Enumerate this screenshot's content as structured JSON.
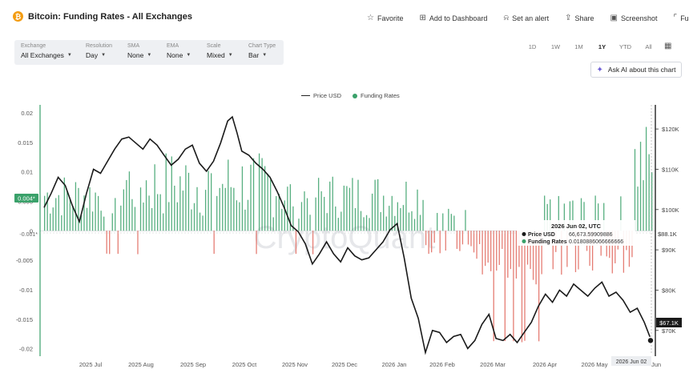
{
  "header": {
    "coin_symbol": "₿",
    "title": "Bitcoin: Funding Rates - All Exchanges",
    "actions": [
      {
        "label": "Favorite",
        "icon": "star-icon"
      },
      {
        "label": "Add to Dashboard",
        "icon": "dashboard-icon"
      },
      {
        "label": "Set an alert",
        "icon": "bell-icon"
      },
      {
        "label": "Share",
        "icon": "share-icon"
      },
      {
        "label": "Screenshot",
        "icon": "camera-icon"
      },
      {
        "label": "Full",
        "icon": "fullscreen-icon"
      }
    ]
  },
  "controls": [
    {
      "label": "Exchange",
      "value": "All Exchanges"
    },
    {
      "label": "Resolution",
      "value": "Day"
    },
    {
      "label": "SMA",
      "value": "None"
    },
    {
      "label": "EMA",
      "value": "None"
    },
    {
      "label": "Scale",
      "value": "Mixed"
    },
    {
      "label": "Chart Type",
      "value": "Bar"
    }
  ],
  "ranges": [
    "1D",
    "1W",
    "1M",
    "1Y",
    "YTD",
    "All"
  ],
  "active_range": "1Y",
  "ai_button": "Ask AI about this chart",
  "watermark": "CryptoQuant",
  "colors": {
    "positive": "#3aa16a",
    "negative": "#e0665c",
    "price": "#1a1a1a",
    "accent": "#6b5cd6"
  },
  "chart_data": {
    "type": "bar",
    "series": [
      {
        "name": "Price USD",
        "type": "line"
      },
      {
        "name": "Funding Rates",
        "type": "bar"
      }
    ],
    "left_axis": {
      "ticks": [
        0.02,
        0.015,
        0.01,
        0.005,
        0,
        -0.005,
        -0.01,
        -0.015,
        -0.02
      ],
      "tick_labels": [
        "0.02",
        "0.015",
        "0.01",
        "0.005",
        "0",
        "-0.005",
        "-0.01",
        "-0.015",
        "-0.02"
      ],
      "range": [
        -0.021,
        0.02
      ]
    },
    "right_axis": {
      "ticks": [
        120000,
        110000,
        100000,
        90000,
        80000,
        70000
      ],
      "tick_labels": [
        "$120K",
        "$110K",
        "$100K",
        "$90K",
        "$80K",
        "$70K"
      ],
      "range": [
        64000,
        124000
      ]
    },
    "x_axis": {
      "tick_labels": [
        "2025 Jul",
        "2025 Aug",
        "2025 Sep",
        "2025 Oct",
        "2025 Nov",
        "2025 Dec",
        "2026 Jan",
        "2026 Feb",
        "2026 Mar",
        "2026 Apr",
        "2026 May"
      ],
      "end_partial_label": "Jun"
    },
    "markers": {
      "left_top": "0.004*",
      "left_bottom": "-0.001*",
      "right_a": "$88.1K",
      "right_b": "$67.1K",
      "x_cursor": "2026 Jun 02"
    },
    "tooltip": {
      "title": "2026 Jun 02, UTC",
      "rows": [
        {
          "label": "Price USD",
          "value": "66,673.59909886"
        },
        {
          "label": "Funding Rates",
          "value": "0.0180886066666666"
        }
      ]
    },
    "price_points": [
      [
        0,
        100500
      ],
      [
        6,
        104000
      ],
      [
        12,
        108000
      ],
      [
        18,
        106000
      ],
      [
        24,
        101000
      ],
      [
        30,
        97000
      ],
      [
        36,
        104000
      ],
      [
        42,
        110000
      ],
      [
        48,
        109000
      ],
      [
        54,
        112000
      ],
      [
        60,
        115000
      ],
      [
        66,
        117500
      ],
      [
        72,
        118000
      ],
      [
        78,
        116500
      ],
      [
        84,
        115000
      ],
      [
        90,
        117500
      ],
      [
        96,
        116000
      ],
      [
        102,
        113500
      ],
      [
        108,
        111000
      ],
      [
        114,
        112500
      ],
      [
        120,
        115000
      ],
      [
        126,
        116000
      ],
      [
        132,
        111500
      ],
      [
        138,
        109500
      ],
      [
        144,
        112000
      ],
      [
        150,
        116500
      ],
      [
        156,
        122000
      ],
      [
        160,
        123000
      ],
      [
        164,
        119000
      ],
      [
        168,
        114500
      ],
      [
        174,
        113500
      ],
      [
        180,
        111500
      ],
      [
        186,
        110000
      ],
      [
        192,
        108000
      ],
      [
        198,
        104500
      ],
      [
        204,
        100500
      ],
      [
        210,
        96000
      ],
      [
        216,
        94500
      ],
      [
        222,
        91500
      ],
      [
        228,
        86500
      ],
      [
        234,
        89000
      ],
      [
        240,
        92000
      ],
      [
        246,
        89000
      ],
      [
        252,
        87000
      ],
      [
        258,
        90500
      ],
      [
        264,
        88500
      ],
      [
        270,
        87500
      ],
      [
        276,
        88000
      ],
      [
        282,
        90000
      ],
      [
        288,
        92000
      ],
      [
        294,
        95000
      ],
      [
        300,
        96500
      ],
      [
        306,
        88000
      ],
      [
        312,
        78000
      ],
      [
        318,
        73000
      ],
      [
        324,
        64500
      ],
      [
        330,
        70000
      ],
      [
        336,
        69500
      ],
      [
        342,
        67000
      ],
      [
        348,
        68500
      ],
      [
        354,
        69000
      ],
      [
        360,
        65500
      ],
      [
        366,
        67500
      ],
      [
        372,
        71500
      ],
      [
        378,
        74000
      ],
      [
        384,
        68000
      ],
      [
        390,
        67500
      ],
      [
        396,
        69000
      ],
      [
        402,
        67000
      ],
      [
        408,
        69500
      ],
      [
        414,
        72000
      ],
      [
        420,
        76000
      ],
      [
        426,
        79000
      ],
      [
        432,
        77000
      ],
      [
        438,
        80000
      ],
      [
        444,
        78500
      ],
      [
        450,
        81500
      ],
      [
        456,
        80000
      ],
      [
        462,
        78500
      ],
      [
        468,
        80500
      ],
      [
        474,
        82000
      ],
      [
        480,
        78500
      ],
      [
        486,
        79500
      ],
      [
        492,
        77500
      ],
      [
        498,
        74500
      ],
      [
        504,
        75500
      ],
      [
        510,
        72000
      ],
      [
        516,
        67500
      ]
    ]
  }
}
